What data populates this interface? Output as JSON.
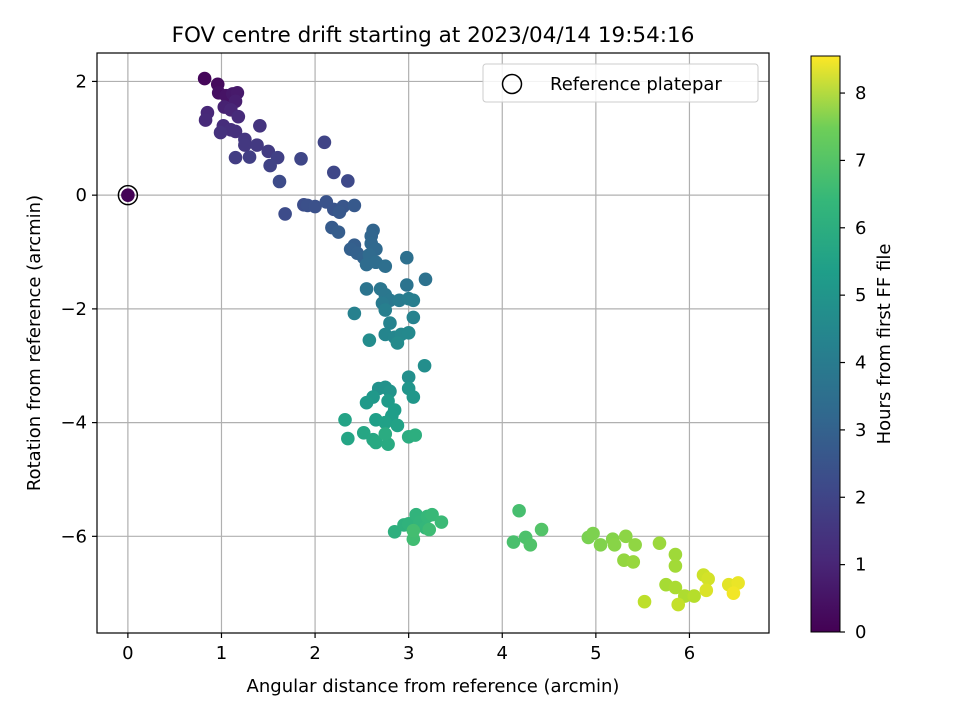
{
  "chart_data": {
    "type": "scatter",
    "title": "FOV centre drift starting at 2023/04/14 19:54:16",
    "xlabel": "Angular distance from reference (arcmin)",
    "ylabel": "Rotation from reference (arcmin)",
    "xlim": [
      -0.33,
      6.85
    ],
    "ylim": [
      -7.7,
      2.5
    ],
    "xticks": [
      0,
      1,
      2,
      3,
      4,
      5,
      6
    ],
    "yticks": [
      2,
      0,
      -2,
      -4,
      -6
    ],
    "xtick_labels": [
      "0",
      "1",
      "2",
      "3",
      "4",
      "5",
      "6"
    ],
    "ytick_labels": [
      "2",
      "0",
      "−2",
      "−4",
      "−6"
    ],
    "grid": true,
    "legend": {
      "placement": "top-right",
      "entries": [
        "Reference platepar"
      ]
    },
    "reference_point": {
      "x": 0,
      "y": 0
    },
    "colorbar": {
      "label": "Hours from first FF file",
      "range": [
        0,
        8.55
      ],
      "ticks": [
        0,
        1,
        2,
        3,
        4,
        5,
        6,
        7,
        8
      ],
      "tick_labels": [
        "0",
        "1",
        "2",
        "3",
        "4",
        "5",
        "6",
        "7",
        "8"
      ],
      "colormap": "viridis"
    },
    "points": [
      [
        0,
        0,
        0.05
      ],
      [
        0.82,
        2.05,
        0.15
      ],
      [
        0.96,
        1.95,
        0.25
      ],
      [
        0.97,
        1.8,
        0.35
      ],
      [
        1.05,
        1.75,
        0.45
      ],
      [
        1.12,
        1.78,
        0.55
      ],
      [
        1.17,
        1.8,
        0.6
      ],
      [
        1.15,
        1.65,
        0.7
      ],
      [
        1.03,
        1.55,
        0.8
      ],
      [
        1.1,
        1.5,
        0.9
      ],
      [
        0.85,
        1.45,
        0.95
      ],
      [
        0.83,
        1.32,
        1.0
      ],
      [
        1.18,
        1.38,
        1.05
      ],
      [
        1.02,
        1.22,
        1.1
      ],
      [
        1.1,
        1.15,
        1.15
      ],
      [
        1.15,
        1.12,
        1.2
      ],
      [
        0.99,
        1.1,
        1.25
      ],
      [
        1.41,
        1.22,
        1.3
      ],
      [
        1.25,
        0.98,
        1.35
      ],
      [
        1.25,
        0.88,
        1.4
      ],
      [
        1.38,
        0.88,
        1.45
      ],
      [
        1.5,
        0.77,
        1.5
      ],
      [
        1.15,
        0.66,
        1.55
      ],
      [
        1.3,
        0.67,
        1.6
      ],
      [
        1.6,
        0.66,
        1.65
      ],
      [
        1.52,
        0.52,
        1.7
      ],
      [
        2.1,
        0.93,
        1.75
      ],
      [
        1.85,
        0.64,
        1.8
      ],
      [
        2.2,
        0.4,
        1.85
      ],
      [
        2.35,
        0.25,
        1.9
      ],
      [
        1.62,
        0.24,
        1.95
      ],
      [
        1.68,
        -0.33,
        2.0
      ],
      [
        1.88,
        -0.17,
        2.05
      ],
      [
        1.92,
        -0.18,
        2.1
      ],
      [
        2.0,
        -0.2,
        2.15
      ],
      [
        2.12,
        -0.12,
        2.2
      ],
      [
        2.2,
        -0.25,
        2.25
      ],
      [
        2.3,
        -0.2,
        2.3
      ],
      [
        2.26,
        -0.3,
        2.35
      ],
      [
        2.42,
        -0.18,
        2.4
      ],
      [
        2.18,
        -0.57,
        2.45
      ],
      [
        2.25,
        -0.65,
        2.5
      ],
      [
        2.42,
        -0.88,
        2.55
      ],
      [
        2.38,
        -0.95,
        2.6
      ],
      [
        2.45,
        -1.02,
        2.65
      ],
      [
        2.52,
        -1.1,
        2.7
      ],
      [
        2.62,
        -0.62,
        2.75
      ],
      [
        2.6,
        -0.72,
        2.8
      ],
      [
        2.6,
        -0.85,
        2.85
      ],
      [
        2.65,
        -0.95,
        2.9
      ],
      [
        2.58,
        -1.05,
        2.95
      ],
      [
        2.55,
        -1.22,
        3.0
      ],
      [
        2.65,
        -1.18,
        3.05
      ],
      [
        2.75,
        -1.25,
        3.1
      ],
      [
        2.98,
        -1.1,
        3.15
      ],
      [
        3.18,
        -1.48,
        3.2
      ],
      [
        2.98,
        -1.58,
        3.25
      ],
      [
        2.55,
        -1.65,
        3.3
      ],
      [
        2.7,
        -1.65,
        3.35
      ],
      [
        2.75,
        -1.75,
        3.4
      ],
      [
        2.8,
        -1.85,
        3.45
      ],
      [
        2.72,
        -1.9,
        3.5
      ],
      [
        2.9,
        -1.85,
        3.55
      ],
      [
        3.0,
        -1.82,
        3.6
      ],
      [
        3.05,
        -1.85,
        3.65
      ],
      [
        2.75,
        -2.02,
        3.7
      ],
      [
        2.42,
        -2.08,
        3.75
      ],
      [
        3.05,
        -2.15,
        3.8
      ],
      [
        2.8,
        -2.25,
        3.85
      ],
      [
        2.75,
        -2.45,
        3.9
      ],
      [
        2.85,
        -2.5,
        3.95
      ],
      [
        2.92,
        -2.45,
        4.0
      ],
      [
        3.0,
        -2.42,
        4.05
      ],
      [
        2.88,
        -2.6,
        4.1
      ],
      [
        2.58,
        -2.55,
        4.15
      ],
      [
        3.17,
        -3.0,
        4.2
      ],
      [
        3.0,
        -3.2,
        4.25
      ],
      [
        2.68,
        -3.4,
        4.3
      ],
      [
        2.75,
        -3.38,
        4.35
      ],
      [
        2.8,
        -3.45,
        4.4
      ],
      [
        3.0,
        -3.4,
        4.45
      ],
      [
        3.05,
        -3.55,
        4.5
      ],
      [
        2.62,
        -3.55,
        4.55
      ],
      [
        2.55,
        -3.65,
        4.6
      ],
      [
        2.78,
        -3.62,
        4.65
      ],
      [
        2.85,
        -3.78,
        4.7
      ],
      [
        2.82,
        -3.88,
        4.75
      ],
      [
        2.65,
        -3.95,
        4.8
      ],
      [
        2.75,
        -4.0,
        4.85
      ],
      [
        2.88,
        -4.05,
        4.9
      ],
      [
        2.32,
        -3.95,
        4.95
      ],
      [
        2.35,
        -4.28,
        5.0
      ],
      [
        2.52,
        -4.18,
        5.05
      ],
      [
        2.62,
        -4.3,
        5.1
      ],
      [
        2.65,
        -4.35,
        5.15
      ],
      [
        2.78,
        -4.38,
        5.2
      ],
      [
        2.75,
        -4.2,
        5.25
      ],
      [
        3.0,
        -4.25,
        5.3
      ],
      [
        3.07,
        -4.22,
        5.35
      ],
      [
        2.85,
        -5.92,
        5.4
      ],
      [
        2.95,
        -5.8,
        5.45
      ],
      [
        3.0,
        -5.78,
        5.5
      ],
      [
        3.08,
        -5.62,
        5.55
      ],
      [
        3.12,
        -5.75,
        5.6
      ],
      [
        3.18,
        -5.85,
        5.65
      ],
      [
        3.2,
        -5.65,
        5.7
      ],
      [
        3.25,
        -5.62,
        5.75
      ],
      [
        3.35,
        -5.75,
        5.8
      ],
      [
        3.22,
        -5.88,
        5.85
      ],
      [
        3.05,
        -6.05,
        5.9
      ],
      [
        3.05,
        -5.9,
        5.95
      ],
      [
        4.18,
        -5.55,
        6.0
      ],
      [
        4.12,
        -6.1,
        6.05
      ],
      [
        4.25,
        -6.02,
        6.1
      ],
      [
        4.3,
        -6.15,
        6.15
      ],
      [
        4.42,
        -5.88,
        6.2
      ],
      [
        4.92,
        -6.02,
        6.8
      ],
      [
        4.97,
        -5.95,
        6.85
      ],
      [
        5.05,
        -6.15,
        6.9
      ],
      [
        5.18,
        -6.05,
        6.95
      ],
      [
        5.2,
        -6.15,
        7.0
      ],
      [
        5.32,
        -6.0,
        7.05
      ],
      [
        5.42,
        -6.15,
        7.1
      ],
      [
        5.3,
        -6.42,
        7.15
      ],
      [
        5.4,
        -6.45,
        7.2
      ],
      [
        5.68,
        -6.12,
        7.25
      ],
      [
        5.85,
        -6.32,
        7.3
      ],
      [
        5.85,
        -6.52,
        7.35
      ],
      [
        5.75,
        -6.85,
        7.4
      ],
      [
        5.85,
        -6.9,
        7.45
      ],
      [
        5.95,
        -7.05,
        7.5
      ],
      [
        6.05,
        -7.05,
        7.6
      ],
      [
        5.52,
        -7.15,
        7.7
      ],
      [
        5.88,
        -7.2,
        7.8
      ],
      [
        6.15,
        -6.68,
        7.9
      ],
      [
        6.2,
        -6.75,
        8.0
      ],
      [
        6.18,
        -6.95,
        8.1
      ],
      [
        6.42,
        -6.85,
        8.2
      ],
      [
        6.52,
        -6.82,
        8.3
      ],
      [
        6.47,
        -7.0,
        8.4
      ]
    ]
  }
}
